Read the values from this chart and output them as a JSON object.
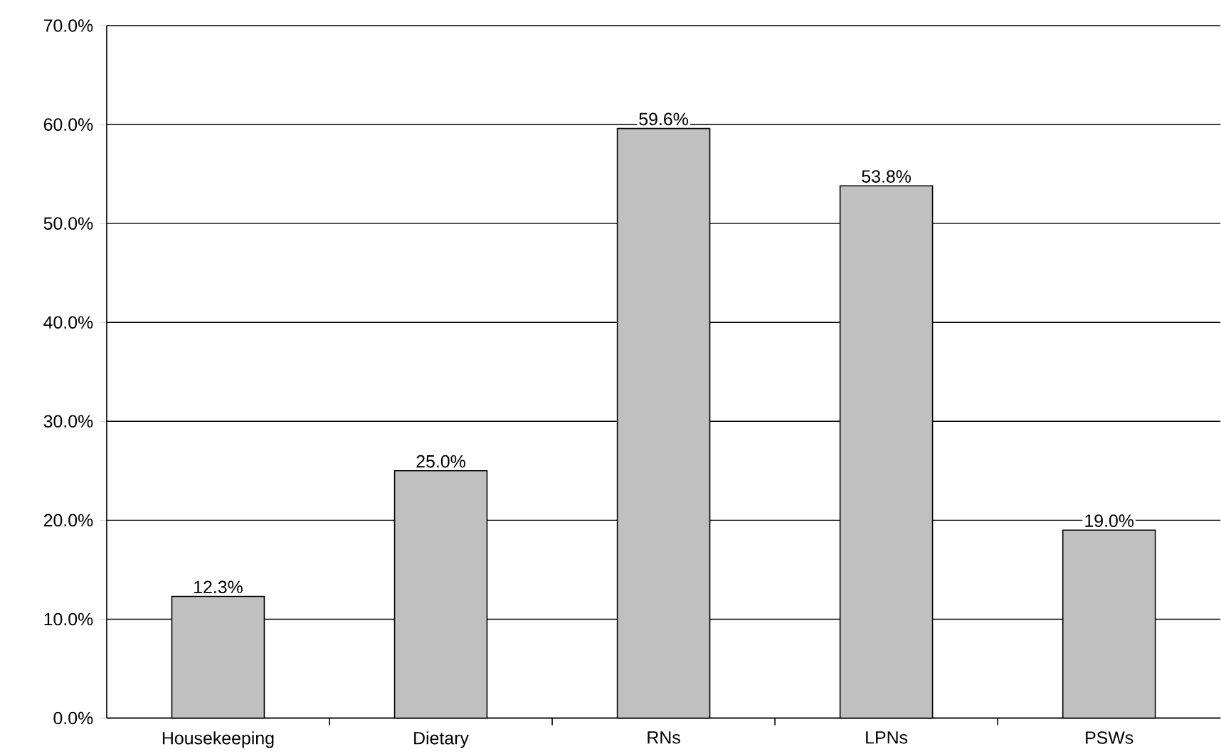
{
  "chart_data": {
    "type": "bar",
    "categories": [
      "Housekeeping",
      "Dietary",
      "RNs",
      "LPNs",
      "PSWs"
    ],
    "values": [
      12.3,
      25.0,
      59.6,
      53.8,
      19.0
    ],
    "value_labels": [
      "12.3%",
      "25.0%",
      "59.6%",
      "53.8%",
      "19.0%"
    ],
    "color": "#c0c0c0",
    "ylim": [
      0,
      70
    ],
    "yticks": [
      {
        "value": 0,
        "label": "0.0%"
      },
      {
        "value": 10,
        "label": "10.0%"
      },
      {
        "value": 20,
        "label": "20.0%"
      },
      {
        "value": 30,
        "label": "30.0%"
      },
      {
        "value": 40,
        "label": "40.0%"
      },
      {
        "value": 50,
        "label": "50.0%"
      },
      {
        "value": 60,
        "label": "60.0%"
      },
      {
        "value": 70,
        "label": "70.0%"
      }
    ],
    "grid": "y"
  }
}
